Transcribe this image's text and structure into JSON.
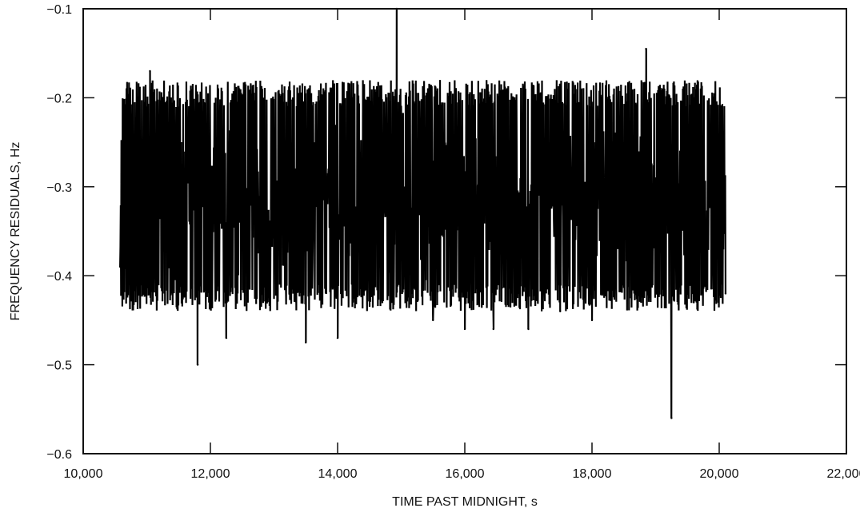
{
  "chart_data": {
    "type": "line",
    "title": "",
    "xlabel": "TIME PAST MIDNIGHT, s",
    "ylabel": "FREQUENCY RESIDUALS, Hz",
    "xlim": [
      10000,
      22000
    ],
    "ylim": [
      -0.6,
      -0.1
    ],
    "grid": false,
    "x_ticks": [
      10000,
      12000,
      14000,
      16000,
      18000,
      20000,
      22000
    ],
    "x_tick_labels": [
      "10,000",
      "12,000",
      "14,000",
      "16,000",
      "18,000",
      "20,000",
      "22,000"
    ],
    "y_ticks": [
      -0.6,
      -0.5,
      -0.4,
      -0.3,
      -0.2,
      -0.1
    ],
    "y_tick_labels": [
      "−0.6",
      "−0.5",
      "−0.4",
      "−0.3",
      "−0.2",
      "−0.1"
    ],
    "series": [
      {
        "color": "#000000",
        "x_range": [
          10580,
          20100
        ],
        "mean": -0.315,
        "typical_range": [
          -0.41,
          -0.21
        ],
        "x": [
          10580,
          11050,
          11800,
          12250,
          13500,
          14000,
          14930,
          15500,
          16000,
          16450,
          17000,
          17500,
          18000,
          18850,
          19250,
          19600,
          20100
        ],
        "y": [
          -0.39,
          -0.17,
          -0.5,
          -0.47,
          -0.475,
          -0.47,
          -0.1,
          -0.45,
          -0.46,
          -0.46,
          -0.46,
          -0.44,
          -0.45,
          -0.145,
          -0.56,
          -0.43,
          -0.42
        ]
      }
    ]
  }
}
